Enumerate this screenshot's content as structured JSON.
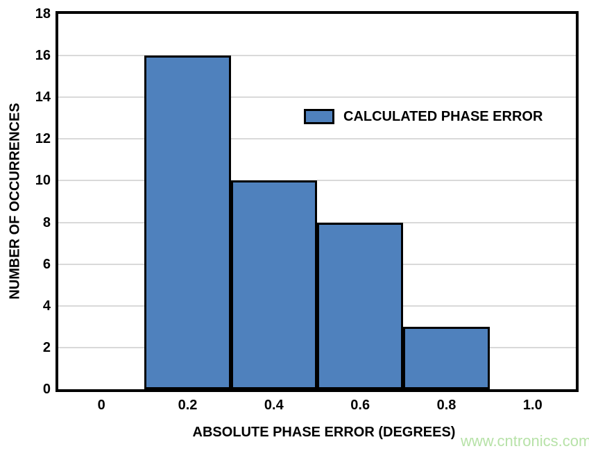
{
  "chart_data": {
    "type": "bar",
    "subtype": "histogram",
    "title": "",
    "xlabel": "ABSOLUTE PHASE ERROR (DEGREES)",
    "ylabel": "NUMBER OF OCCURRENCES",
    "bin_edges": [
      0.1,
      0.3,
      0.5,
      0.7,
      0.9
    ],
    "values": [
      16,
      10,
      8,
      3
    ],
    "categories": [
      "0.1-0.3",
      "0.3-0.5",
      "0.5-0.7",
      "0.7-0.9"
    ],
    "xlim": [
      -0.1,
      1.1
    ],
    "ylim": [
      0,
      18
    ],
    "x_ticks": [
      {
        "value": 0,
        "label": "0"
      },
      {
        "value": 0.2,
        "label": "0.2"
      },
      {
        "value": 0.4,
        "label": "0.4"
      },
      {
        "value": 0.6,
        "label": "0.6"
      },
      {
        "value": 0.8,
        "label": "0.8"
      },
      {
        "value": 1.0,
        "label": "1.0"
      }
    ],
    "y_ticks": [
      {
        "value": 0,
        "label": "0"
      },
      {
        "value": 2,
        "label": "2"
      },
      {
        "value": 4,
        "label": "4"
      },
      {
        "value": 6,
        "label": "6"
      },
      {
        "value": 8,
        "label": "8"
      },
      {
        "value": 10,
        "label": "10"
      },
      {
        "value": 12,
        "label": "12"
      },
      {
        "value": 14,
        "label": "14"
      },
      {
        "value": 16,
        "label": "16"
      },
      {
        "value": 18,
        "label": "18"
      }
    ],
    "grid": {
      "horizontal": true,
      "vertical": false
    },
    "legend": {
      "label": "CALCULATED PHASE ERROR",
      "position": "inside-upper-middle-right"
    },
    "colors": {
      "bar_fill": "#4f81bd",
      "bar_border": "#000000",
      "frame": "#000000",
      "gridline": "#d9d9d9",
      "background": "#ffffff",
      "text": "#000000"
    }
  },
  "watermark": {
    "text": "www.cntronics.com",
    "color": "#b7e2a8"
  }
}
